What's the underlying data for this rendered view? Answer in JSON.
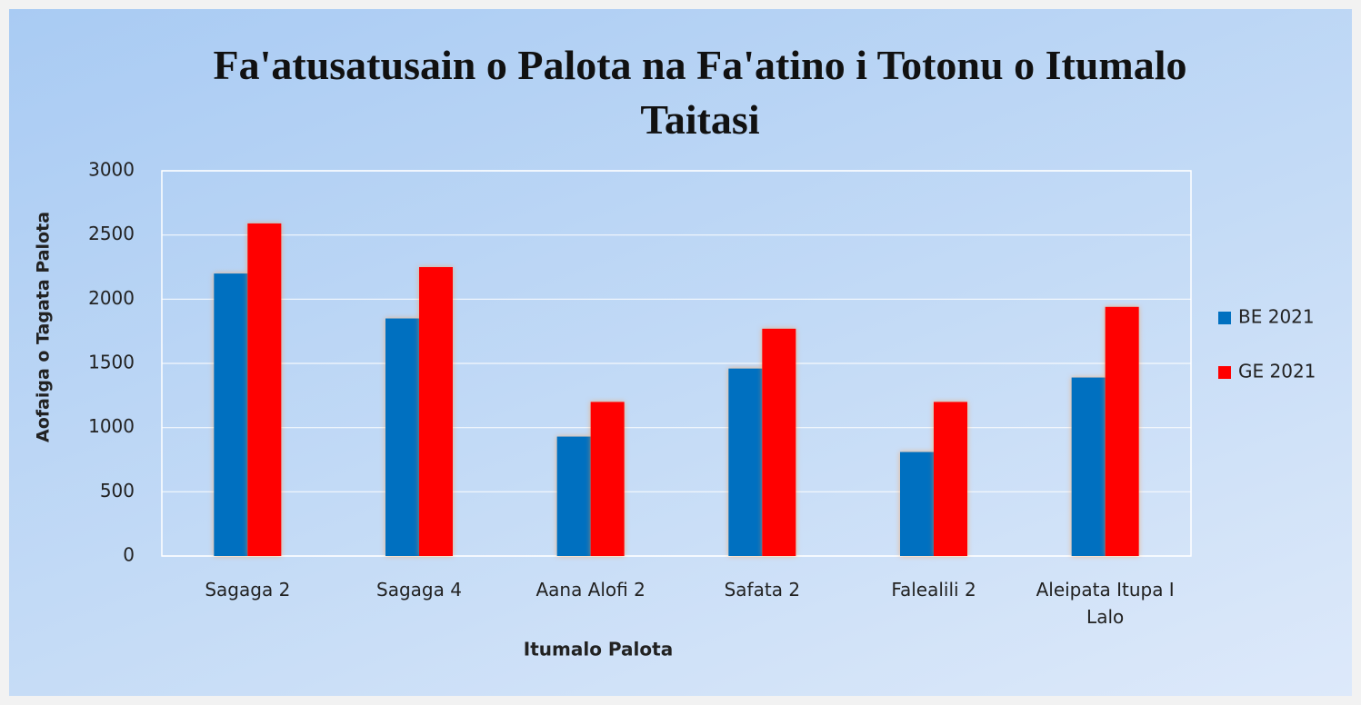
{
  "chart_data": {
    "type": "bar",
    "title": "Fa'atusatusain o Palota na Fa'atino i Totonu o Itumalo Taitasi",
    "y_label": "Aofaiga o Tagata Palota",
    "x_label": "Itumalo Palota",
    "categories": [
      "Sagaga 2",
      "Sagaga 4",
      "Aana Alofi 2",
      "Safata 2",
      "Falealili 2",
      "Aleipata Itupa I Lalo"
    ],
    "series": [
      {
        "name": "BE 2021",
        "color": "#0070c0",
        "values": [
          2200,
          1850,
          930,
          1460,
          810,
          1390
        ]
      },
      {
        "name": "GE 2021",
        "color": "#ff0000",
        "values": [
          2590,
          2250,
          1200,
          1770,
          1200,
          1940
        ]
      }
    ],
    "ylim": [
      0,
      3000
    ],
    "yticks": [
      0,
      500,
      1000,
      1500,
      2000,
      2500,
      3000
    ],
    "grid": true,
    "legend": "right"
  }
}
